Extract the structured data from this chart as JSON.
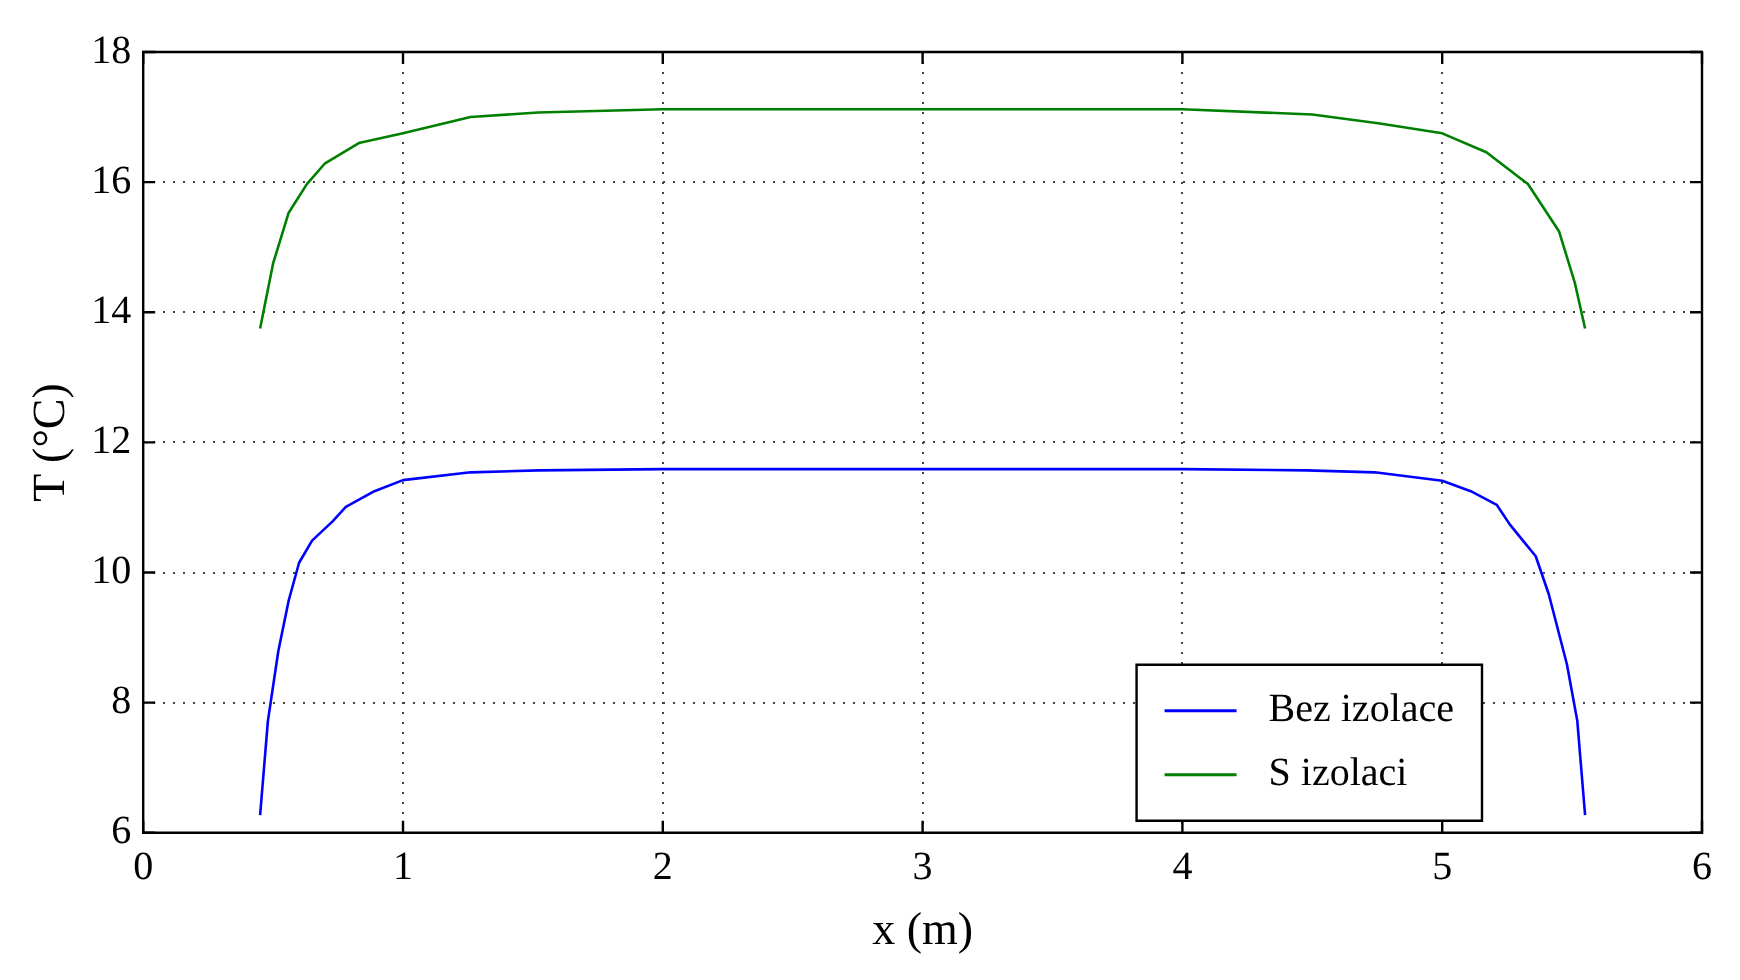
{
  "chart_data": {
    "type": "line",
    "xlabel": "x (m)",
    "ylabel": "T (°C)",
    "xlim": [
      0,
      6
    ],
    "xticks": [
      0,
      1,
      2,
      3,
      4,
      5,
      6
    ],
    "ylim": [
      6,
      18
    ],
    "yticks": [
      6,
      8,
      10,
      12,
      14,
      16,
      18
    ],
    "grid": true,
    "legend": "bottom right",
    "line_style": "solid",
    "marker": "none",
    "series": [
      {
        "name": "Bez izolace",
        "color": "#0000ff",
        "x": [
          0.45,
          0.48,
          0.52,
          0.56,
          0.6,
          0.65,
          0.73,
          0.78,
          0.89,
          1.0,
          1.26,
          1.52,
          2.0,
          3.0,
          4.0,
          4.48,
          4.74,
          5.0,
          5.11,
          5.21,
          5.26,
          5.36,
          5.41,
          5.48,
          5.52,
          5.55
        ],
        "values": [
          6.27,
          7.72,
          8.79,
          9.57,
          10.15,
          10.49,
          10.79,
          11.01,
          11.25,
          11.42,
          11.54,
          11.57,
          11.59,
          11.59,
          11.59,
          11.57,
          11.54,
          11.41,
          11.25,
          11.04,
          10.74,
          10.25,
          9.67,
          8.59,
          7.72,
          6.27
        ]
      },
      {
        "name": "S izolaci",
        "color": "#008000",
        "x": [
          0.45,
          0.5,
          0.56,
          0.63,
          0.7,
          0.83,
          1.0,
          1.26,
          1.52,
          2.0,
          3.0,
          4.0,
          4.5,
          4.76,
          5.0,
          5.17,
          5.33,
          5.45,
          5.51,
          5.55
        ],
        "values": [
          13.75,
          14.75,
          15.53,
          15.97,
          16.29,
          16.6,
          16.75,
          17.0,
          17.07,
          17.12,
          17.12,
          17.12,
          17.04,
          16.9,
          16.75,
          16.46,
          15.97,
          15.24,
          14.46,
          13.75
        ]
      }
    ]
  }
}
